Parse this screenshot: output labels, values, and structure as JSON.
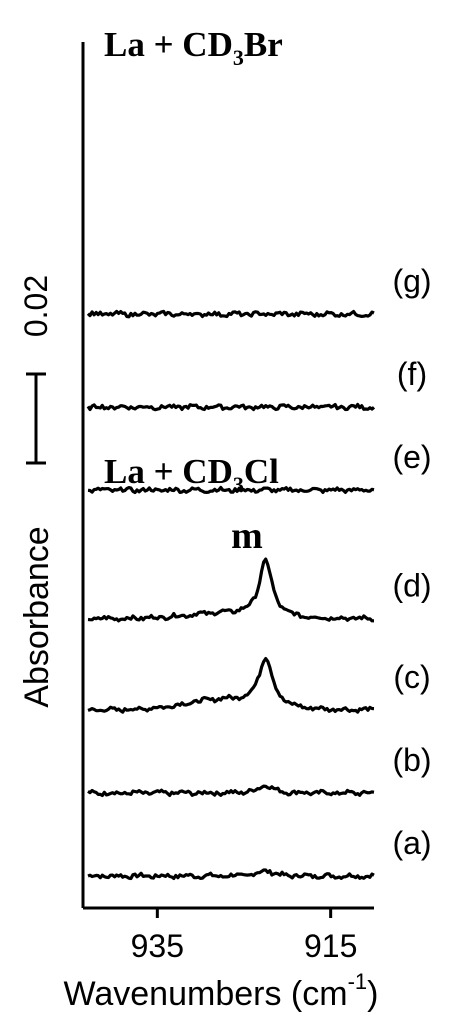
{
  "chart_data": {
    "type": "line",
    "xlabel": "Wavenumbers (cm",
    "xlabel_sup": "-1",
    "xlabel_close": ")",
    "ylabel": "Absorbance",
    "scale_bar_label": "0.02",
    "scale_bar_value": 0.02,
    "xlim": [
      943,
      910
    ],
    "x_reversed": true,
    "x_ticks": [
      935,
      915
    ],
    "x_tick_labels": [
      "935",
      "915"
    ],
    "group_labels": [
      {
        "text": "La + CD",
        "sub": "3",
        "tail": "Br"
      },
      {
        "text": "La + CD",
        "sub": "3",
        "tail": "Cl"
      }
    ],
    "peak_label": "m",
    "peak_center": 922.5,
    "series": [
      {
        "label": "(a)",
        "baseline": 0.0,
        "peak": 0.0007,
        "width": 0.9,
        "shoulder": 0.0
      },
      {
        "label": "(b)",
        "baseline": 0.01,
        "peak": 0.001,
        "width": 0.9,
        "shoulder": 0.0
      },
      {
        "label": "(c)",
        "baseline": 0.02,
        "peak": 0.0058,
        "width": 0.95,
        "shoulder": 0.0012
      },
      {
        "label": "(d)",
        "baseline": 0.031,
        "peak": 0.0067,
        "width": 0.9,
        "shoulder": 0.0006
      },
      {
        "label": "(e)",
        "baseline": 0.0465,
        "peak": 0.0,
        "width": 1.0,
        "shoulder": 0.0
      },
      {
        "label": "(f)",
        "baseline": 0.0565,
        "peak": 0.0,
        "width": 1.0,
        "shoulder": 0.0
      },
      {
        "label": "(g)",
        "baseline": 0.0677,
        "peak": 0.0,
        "width": 1.0,
        "shoulder": 0.0
      }
    ]
  }
}
